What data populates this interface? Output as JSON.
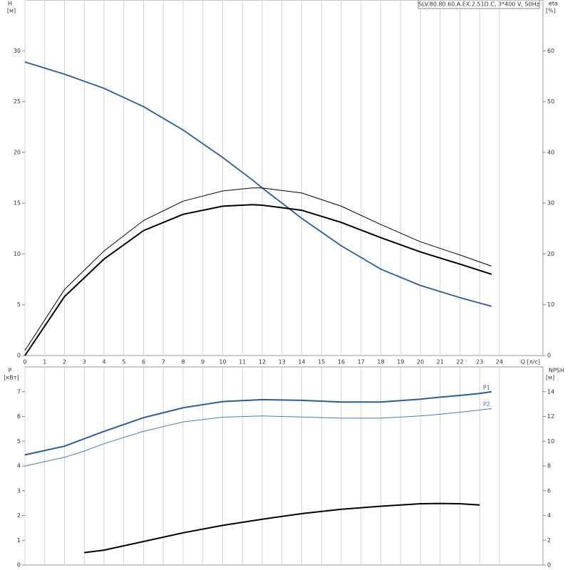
{
  "chart_data": [
    {
      "type": "line",
      "title": "SLV.80.80.60.A.EX.2.51D.C, 3*400 V, 50Hz",
      "ylabel": [
        "H",
        "[м]"
      ],
      "y2label": [
        "eta",
        "[%]"
      ],
      "xlabel": "Q [л/с]",
      "x": [
        0,
        2,
        4,
        6,
        8,
        10,
        11.5,
        12,
        14,
        16,
        18,
        20,
        22,
        23.6
      ],
      "xlim": [
        0,
        26.2
      ],
      "xticks": [
        0,
        1,
        2,
        3,
        4,
        5,
        6,
        7,
        8,
        9,
        10,
        11,
        12,
        13,
        14,
        15,
        16,
        17,
        18,
        19,
        20,
        21,
        22,
        23,
        24
      ],
      "ylim": [
        0,
        35
      ],
      "yticks": [
        0,
        5,
        10,
        15,
        20,
        25,
        30
      ],
      "y2lim": [
        0,
        70
      ],
      "y2ticks": [
        0,
        10,
        20,
        30,
        40,
        50,
        60
      ],
      "grid": true,
      "series": [
        {
          "color": "#2a5c9a",
          "values": [
            28.9,
            27.7,
            26.3,
            24.5,
            22.2,
            19.5,
            17.3,
            16.5,
            13.5,
            10.8,
            8.5,
            6.9,
            5.7,
            4.85
          ]
        },
        {
          "color": "#000000",
          "axis": "y2",
          "values": [
            1,
            13,
            20.6,
            26.6,
            30.4,
            32.4,
            33,
            33,
            32,
            29.4,
            25.8,
            22.4,
            19.8,
            17.6
          ]
        },
        {
          "color": "#000000",
          "axis": "y2",
          "values": [
            0,
            11.6,
            19,
            24.6,
            27.8,
            29.4,
            29.7,
            29.6,
            28.6,
            26.2,
            23.2,
            20.4,
            18,
            16
          ]
        }
      ]
    },
    {
      "type": "line",
      "ylabel": [
        "P",
        "[кВт]"
      ],
      "y2label": [
        "NPSH",
        "[м]"
      ],
      "x": [
        0,
        2,
        3,
        4,
        6,
        8,
        10,
        12,
        14,
        16,
        18,
        20,
        21,
        22,
        23,
        23.6
      ],
      "xlim": [
        0,
        26.2
      ],
      "xticks": [
        0,
        1,
        2,
        3,
        4,
        5,
        6,
        7,
        8,
        9,
        10,
        11,
        12,
        13,
        14,
        15,
        16,
        17,
        18,
        19,
        20,
        21,
        22,
        23,
        24
      ],
      "ylim": [
        0,
        8
      ],
      "yticks": [
        0,
        1,
        2,
        3,
        4,
        5,
        6,
        7
      ],
      "y2lim": [
        0,
        16
      ],
      "y2ticks": [
        0,
        2,
        4,
        6,
        8,
        10,
        12,
        14
      ],
      "grid": true,
      "series": [
        {
          "name": "P1",
          "color": "#2a5c9a",
          "values": [
            4.45,
            4.8,
            5.1,
            5.4,
            5.95,
            6.35,
            6.6,
            6.68,
            6.65,
            6.58,
            6.58,
            6.7,
            6.78,
            6.85,
            6.93,
            7.0
          ]
        },
        {
          "name": "P2",
          "color": "#4a7ab5",
          "values": [
            4.0,
            4.35,
            4.6,
            4.9,
            5.4,
            5.78,
            5.97,
            6.02,
            5.98,
            5.93,
            5.93,
            6.02,
            6.09,
            6.17,
            6.26,
            6.32
          ]
        },
        {
          "color": "#000000",
          "axis": "y2",
          "values": [
            null,
            null,
            1.0,
            1.2,
            1.9,
            2.6,
            3.2,
            3.7,
            4.15,
            4.5,
            4.75,
            4.95,
            4.97,
            4.95,
            4.85,
            null
          ]
        }
      ]
    }
  ]
}
